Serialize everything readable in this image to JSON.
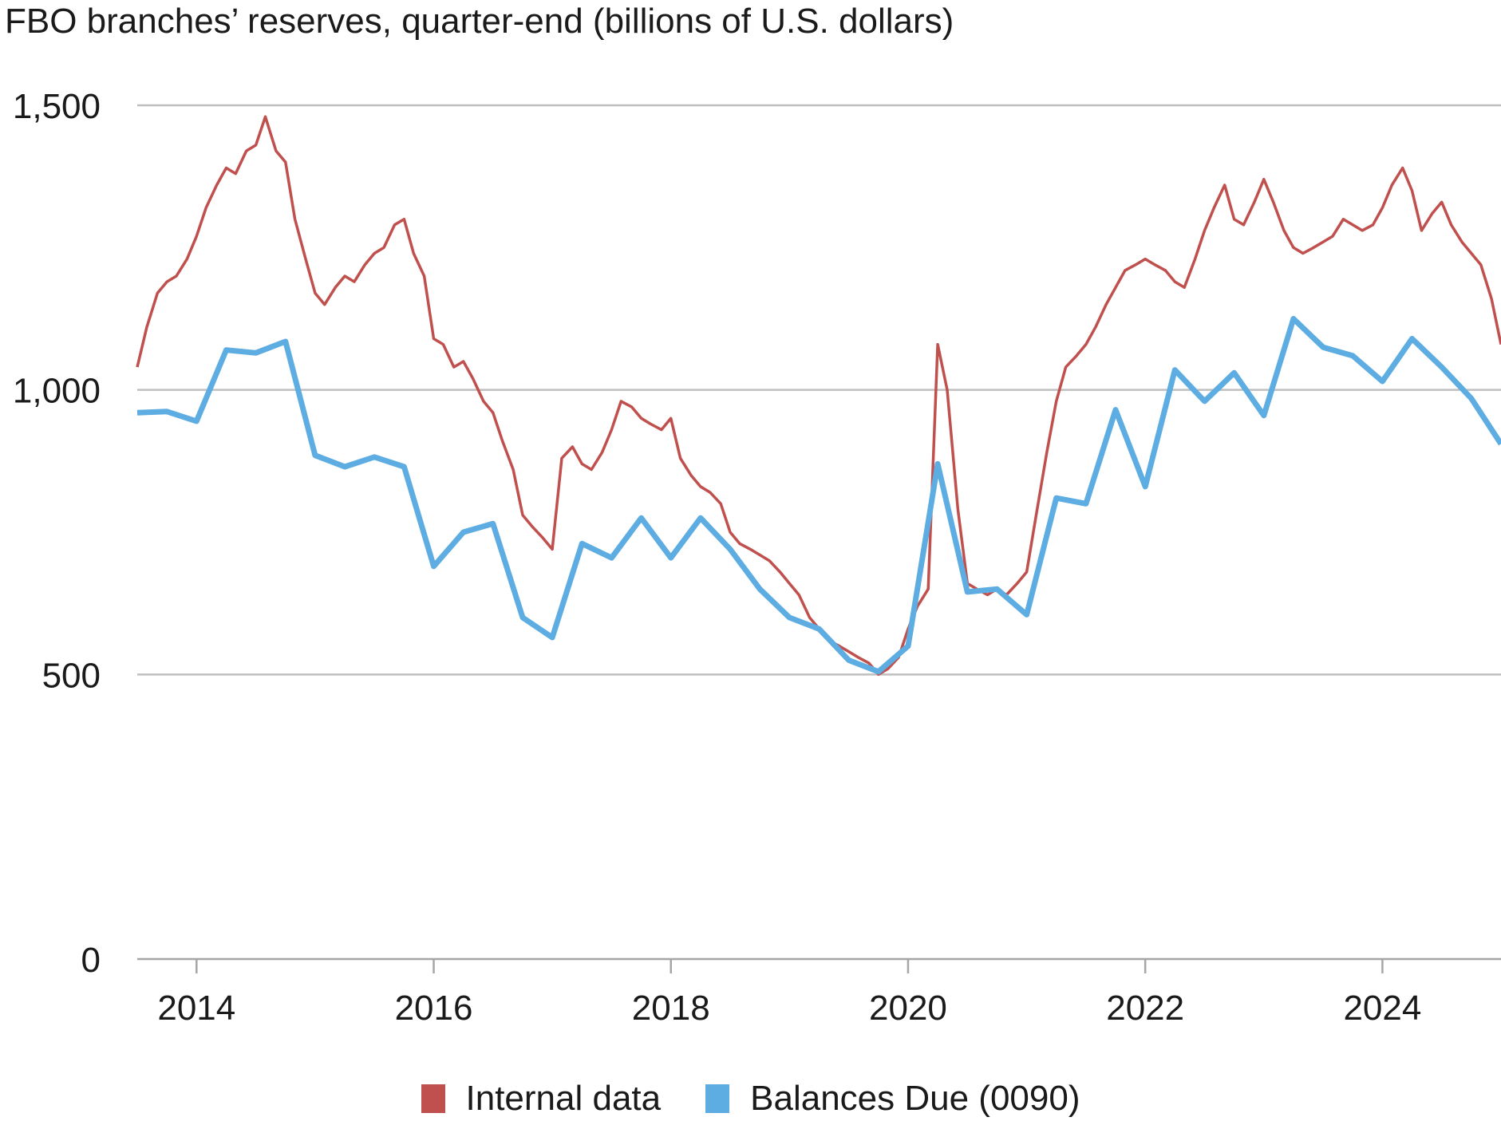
{
  "chart_data": {
    "type": "line",
    "title": "FBO branches’ reserves, quarter-end (billions of U.S. dollars)",
    "xlabel": "",
    "ylabel": "",
    "ylim": [
      0,
      1500
    ],
    "xlim": [
      2013.5,
      2025.0
    ],
    "grid": true,
    "legend_position": "bottom",
    "y_ticks": [
      0,
      500,
      1000,
      1500
    ],
    "y_tick_labels": [
      "0",
      "500",
      "1,000",
      "1,500"
    ],
    "x_ticks": [
      2014,
      2016,
      2018,
      2020,
      2022,
      2024
    ],
    "x_tick_labels": [
      "2014",
      "2016",
      "2018",
      "2020",
      "2022",
      "2024"
    ],
    "colors": {
      "internal": "#c0504d",
      "balances": "#5dade2",
      "grid": "#bfbfbf",
      "axis": "#a6a6a6"
    },
    "series": [
      {
        "name": "Internal data",
        "key": "internal",
        "x": [
          2013.5,
          2013.58,
          2013.67,
          2013.75,
          2013.83,
          2013.92,
          2014.0,
          2014.08,
          2014.17,
          2014.25,
          2014.33,
          2014.42,
          2014.5,
          2014.58,
          2014.67,
          2014.75,
          2014.83,
          2014.92,
          2015.0,
          2015.08,
          2015.17,
          2015.25,
          2015.33,
          2015.42,
          2015.5,
          2015.58,
          2015.67,
          2015.75,
          2015.83,
          2015.92,
          2016.0,
          2016.08,
          2016.17,
          2016.25,
          2016.33,
          2016.42,
          2016.5,
          2016.58,
          2016.67,
          2016.75,
          2016.83,
          2016.92,
          2017.0,
          2017.08,
          2017.17,
          2017.25,
          2017.33,
          2017.42,
          2017.5,
          2017.58,
          2017.67,
          2017.75,
          2017.83,
          2017.92,
          2018.0,
          2018.08,
          2018.17,
          2018.25,
          2018.33,
          2018.42,
          2018.5,
          2018.58,
          2018.67,
          2018.75,
          2018.83,
          2018.92,
          2019.0,
          2019.08,
          2019.17,
          2019.25,
          2019.33,
          2019.42,
          2019.5,
          2019.58,
          2019.67,
          2019.75,
          2019.83,
          2019.92,
          2020.0,
          2020.08,
          2020.17,
          2020.25,
          2020.33,
          2020.42,
          2020.5,
          2020.58,
          2020.67,
          2020.75,
          2020.83,
          2020.92,
          2021.0,
          2021.08,
          2021.17,
          2021.25,
          2021.33,
          2021.42,
          2021.5,
          2021.58,
          2021.67,
          2021.75,
          2021.83,
          2021.92,
          2022.0,
          2022.08,
          2022.17,
          2022.25,
          2022.33,
          2022.42,
          2022.5,
          2022.58,
          2022.67,
          2022.75,
          2022.83,
          2022.92,
          2023.0,
          2023.08,
          2023.17,
          2023.25,
          2023.33,
          2023.42,
          2023.5,
          2023.58,
          2023.67,
          2023.75,
          2023.83,
          2023.92,
          2024.0,
          2024.08,
          2024.17,
          2024.25,
          2024.33,
          2024.42,
          2024.5,
          2024.58,
          2024.67,
          2024.75,
          2024.83,
          2024.92,
          2025.0
        ],
        "values": [
          1040,
          1110,
          1170,
          1190,
          1200,
          1230,
          1270,
          1320,
          1360,
          1390,
          1380,
          1420,
          1430,
          1480,
          1420,
          1400,
          1300,
          1230,
          1170,
          1150,
          1180,
          1200,
          1190,
          1220,
          1240,
          1250,
          1290,
          1300,
          1240,
          1200,
          1090,
          1080,
          1040,
          1050,
          1020,
          980,
          960,
          910,
          860,
          780,
          760,
          740,
          720,
          880,
          900,
          870,
          860,
          890,
          930,
          980,
          970,
          950,
          940,
          930,
          950,
          880,
          850,
          830,
          820,
          800,
          750,
          730,
          720,
          710,
          700,
          680,
          660,
          640,
          600,
          580,
          560,
          550,
          540,
          530,
          520,
          500,
          510,
          530,
          580,
          620,
          650,
          1080,
          1000,
          790,
          660,
          650,
          640,
          650,
          640,
          660,
          680,
          780,
          890,
          980,
          1040,
          1060,
          1080,
          1110,
          1150,
          1180,
          1210,
          1220,
          1230,
          1220,
          1210,
          1190,
          1180,
          1230,
          1280,
          1320,
          1360,
          1300,
          1290,
          1330,
          1370,
          1330,
          1280,
          1250,
          1240,
          1250,
          1260,
          1270,
          1300,
          1290,
          1280,
          1290,
          1320,
          1360,
          1390,
          1350,
          1280,
          1310,
          1330,
          1290,
          1260,
          1240,
          1220,
          1160,
          1080
        ]
      },
      {
        "name": "Balances Due (0090)",
        "key": "balances",
        "x": [
          2013.5,
          2013.75,
          2014.0,
          2014.25,
          2014.5,
          2014.75,
          2015.0,
          2015.25,
          2015.5,
          2015.75,
          2016.0,
          2016.25,
          2016.5,
          2016.75,
          2017.0,
          2017.25,
          2017.5,
          2017.75,
          2018.0,
          2018.25,
          2018.5,
          2018.75,
          2019.0,
          2019.25,
          2019.5,
          2019.75,
          2020.0,
          2020.25,
          2020.5,
          2020.75,
          2021.0,
          2021.25,
          2021.5,
          2021.75,
          2022.0,
          2022.25,
          2022.5,
          2022.75,
          2023.0,
          2023.25,
          2023.5,
          2023.75,
          2024.0,
          2024.25,
          2024.5,
          2024.75,
          2025.0
        ],
        "values": [
          960,
          962,
          945,
          1070,
          1065,
          1085,
          885,
          865,
          882,
          865,
          690,
          750,
          765,
          600,
          565,
          730,
          705,
          775,
          705,
          775,
          720,
          650,
          600,
          580,
          525,
          505,
          550,
          870,
          645,
          650,
          605,
          810,
          800,
          965,
          830,
          1035,
          980,
          1030,
          955,
          1125,
          1075,
          1060,
          1015,
          1090,
          1040,
          985,
          905
        ]
      }
    ]
  }
}
